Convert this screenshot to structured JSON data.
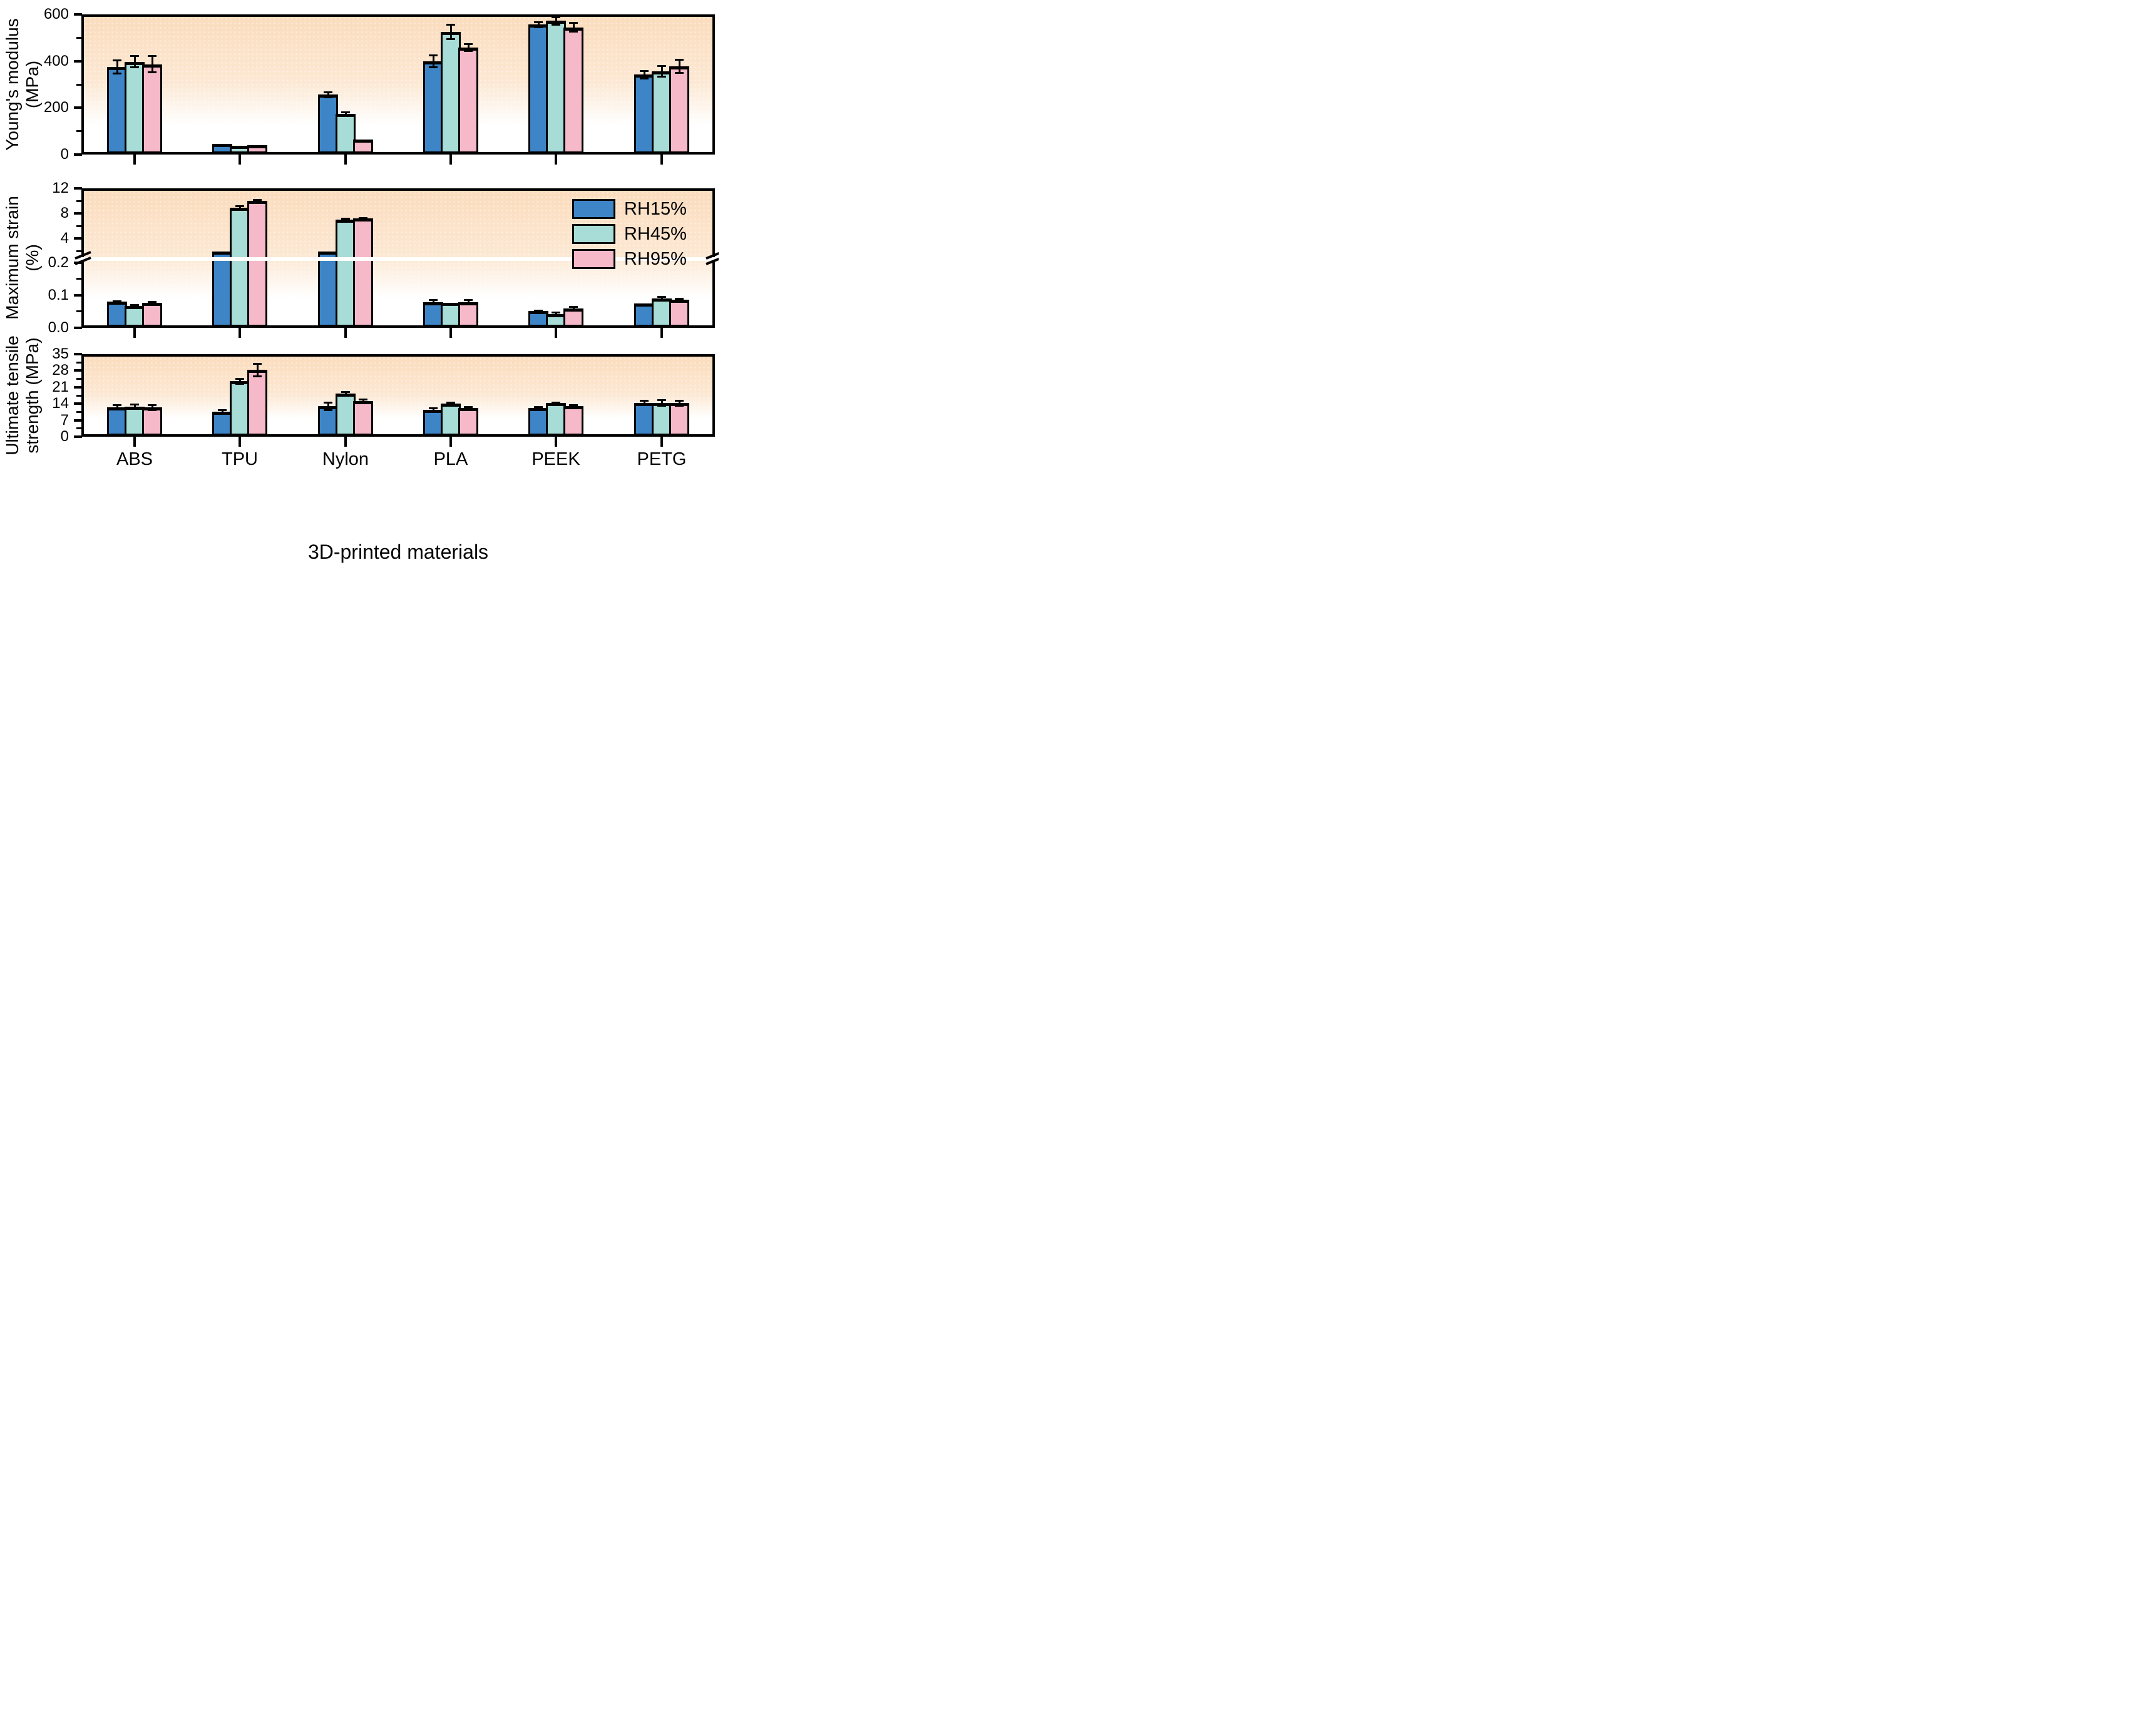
{
  "figure": {
    "xlabel": "3D-printed materials",
    "categories": [
      "ABS",
      "TPU",
      "Nylon",
      "PLA",
      "PEEK",
      "PETG"
    ],
    "legend": [
      {
        "label": "RH15%",
        "color": "#3E85C7"
      },
      {
        "label": "RH45%",
        "color": "#A8DCD6"
      },
      {
        "label": "RH95%",
        "color": "#F5B9C9"
      }
    ],
    "colors": {
      "bar_outline": "#000000",
      "panel_background_top": "#FBDCBD",
      "panel_background_bottom": "#FFFFFF"
    }
  },
  "chart_data": [
    {
      "type": "bar",
      "panel": "top",
      "title": "Young's modulus (MPa) vs 3D-printed materials",
      "ylabel_line1": "Young's modulus",
      "ylabel_line2": "(MPa)",
      "categories": [
        "ABS",
        "TPU",
        "Nylon",
        "PLA",
        "PEEK",
        "PETG"
      ],
      "ylim": [
        0,
        600
      ],
      "yticks": {
        "labeled": [
          0,
          200,
          400,
          600
        ],
        "labels": [
          "0",
          "200",
          "400",
          "600"
        ],
        "minor": [
          100,
          300,
          500
        ]
      },
      "series": [
        {
          "name": "RH15%",
          "values": [
            375,
            45,
            256,
            400,
            556,
            342
          ],
          "errors": [
            29,
            4,
            12,
            27,
            13,
            17
          ]
        },
        {
          "name": "RH45%",
          "values": [
            397,
            38,
            173,
            524,
            572,
            356
          ],
          "errors": [
            25,
            3,
            9,
            32,
            17,
            25
          ]
        },
        {
          "name": "RH95%",
          "values": [
            386,
            39,
            63,
            458,
            544,
            378
          ],
          "errors": [
            36,
            3,
            4,
            17,
            20,
            30
          ]
        }
      ]
    },
    {
      "type": "bar",
      "panel": "middle",
      "title": "Maximum strain (%) vs 3D-printed materials",
      "ylabel_line1": "Maximum strain",
      "ylabel_line2": "(%)",
      "categories": [
        "ABS",
        "TPU",
        "Nylon",
        "PLA",
        "PEEK",
        "PETG"
      ],
      "axis_break": {
        "lower_range": [
          0,
          0.2
        ],
        "upper_range": [
          0.2,
          12
        ],
        "note": "broken y-axis: 0.0-0.2 expanded scale below break, 0.2-12 compressed scale above break"
      },
      "yticks": {
        "labeled": [
          0,
          0.1,
          0.2,
          4,
          8,
          12
        ],
        "labels": [
          "0.0",
          "0.1",
          "0.2",
          "4",
          "8",
          "12"
        ],
        "minor": [
          0.05,
          0.15,
          2,
          6,
          10
        ]
      },
      "series": [
        {
          "name": "RH15%",
          "values": [
            0.08,
            2.0,
            1.95,
            0.078,
            0.051,
            0.074
          ],
          "errors": [
            0.003,
            0.05,
            0.05,
            0.008,
            0.003,
            0.002
          ]
        },
        {
          "name": "RH45%",
          "values": [
            0.067,
            8.9,
            7.0,
            0.076,
            0.043,
            0.09
          ],
          "errors": [
            0.003,
            0.3,
            0.25,
            0.002,
            0.004,
            0.005
          ]
        },
        {
          "name": "RH95%",
          "values": [
            0.076,
            10.0,
            7.2,
            0.079,
            0.059,
            0.086
          ],
          "errors": [
            0.004,
            0.25,
            0.15,
            0.007,
            0.006,
            0.004
          ]
        }
      ]
    },
    {
      "type": "bar",
      "panel": "bottom",
      "title": "Ultimate tensile strength (MPa) vs 3D-printed materials",
      "ylabel_line1": "Ultimate tensile",
      "ylabel_line2": "strength (MPa)",
      "categories": [
        "ABS",
        "TPU",
        "Nylon",
        "PLA",
        "PEEK",
        "PETG"
      ],
      "ylim": [
        0,
        35
      ],
      "yticks": {
        "labeled": [
          0,
          7,
          14,
          21,
          28,
          35
        ],
        "labels": [
          "0",
          "7",
          "14",
          "21",
          "28",
          "35"
        ],
        "minor": [
          3.5,
          10.5,
          17.5,
          24.5,
          31.5
        ]
      },
      "series": [
        {
          "name": "RH15%",
          "values": [
            12.4,
            10.7,
            12.9,
            11.3,
            12.2,
            14.3
          ],
          "errors": [
            1.1,
            0.8,
            1.8,
            0.9,
            0.6,
            1.0
          ]
        },
        {
          "name": "RH45%",
          "values": [
            12.8,
            23.5,
            18.3,
            14.1,
            14.2,
            14.3
          ],
          "errors": [
            1.0,
            1.2,
            0.8,
            0.4,
            0.4,
            1.4
          ]
        },
        {
          "name": "RH95%",
          "values": [
            12.4,
            28.3,
            15.1,
            12.3,
            13.0,
            14.3
          ],
          "errors": [
            1.2,
            2.8,
            0.8,
            0.4,
            0.4,
            1.2
          ]
        }
      ]
    }
  ]
}
